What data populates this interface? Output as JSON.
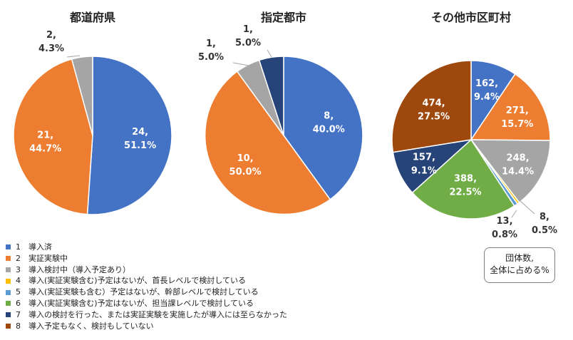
{
  "palette": [
    "#4472C4",
    "#ED7D31",
    "#A5A5A5",
    "#FFC000",
    "#5B9BD5",
    "#70AD47",
    "#264478",
    "#9E480E"
  ],
  "legend": [
    {
      "num": "1",
      "label": "導入済"
    },
    {
      "num": "2",
      "label": "実証実験中"
    },
    {
      "num": "3",
      "label": "導入検討中（導入予定あり）"
    },
    {
      "num": "4",
      "label": "導入(実証実験含む)予定はないが、首長レベルで検討している"
    },
    {
      "num": "5",
      "label": "導入(実証実験も含む）予定はないが、幹部レベルで検討している"
    },
    {
      "num": "6",
      "label": "導入(実証実験含む)予定はないが、担当課レベルで検討している"
    },
    {
      "num": "7",
      "label": "導入の検討を行った、または実証実験を実施したが導入には至らなかった"
    },
    {
      "num": "8",
      "label": "導入予定もなく、検討もしていない"
    }
  ],
  "note": {
    "line1": "団体数,",
    "line2": "全体に占める%"
  },
  "chart_data": [
    {
      "type": "pie",
      "title": "都道府県",
      "slices": [
        {
          "category": "1",
          "value": 24,
          "percent": "51.1%"
        },
        {
          "category": "2",
          "value": 21,
          "percent": "44.7%"
        },
        {
          "category": "3",
          "value": 2,
          "percent": "4.3%"
        }
      ]
    },
    {
      "type": "pie",
      "title": "指定都市",
      "slices": [
        {
          "category": "1",
          "value": 8,
          "percent": "40.0%"
        },
        {
          "category": "2",
          "value": 10,
          "percent": "50.0%"
        },
        {
          "category": "3",
          "value": 1,
          "percent": "5.0%"
        },
        {
          "category": "7",
          "value": 1,
          "percent": "5.0%"
        }
      ]
    },
    {
      "type": "pie",
      "title": "その他市区町村",
      "slices": [
        {
          "category": "1",
          "value": 162,
          "percent": "9.4%"
        },
        {
          "category": "2",
          "value": 271,
          "percent": "15.7%"
        },
        {
          "category": "3",
          "value": 248,
          "percent": "14.4%"
        },
        {
          "category": "4",
          "value": 8,
          "percent": "0.5%"
        },
        {
          "category": "5",
          "value": 13,
          "percent": "0.8%"
        },
        {
          "category": "6",
          "value": 388,
          "percent": "22.5%"
        },
        {
          "category": "7",
          "value": 157,
          "percent": "9.1%"
        },
        {
          "category": "8",
          "value": 474,
          "percent": "27.5%"
        }
      ]
    }
  ]
}
